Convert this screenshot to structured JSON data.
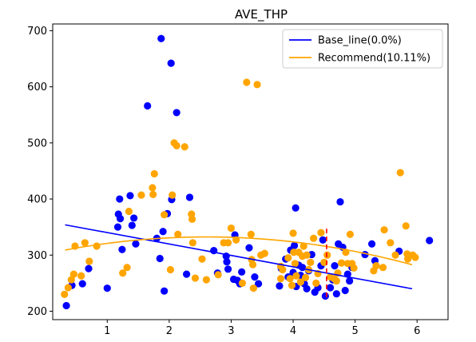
{
  "chart_data": {
    "type": "scatter",
    "title": "AVE_THP",
    "xlabel": "",
    "ylabel": "",
    "xlim": [
      0.12,
      6.5
    ],
    "ylim": [
      185,
      712
    ],
    "xticks": [
      1,
      2,
      3,
      4,
      5,
      6
    ],
    "yticks": [
      200,
      300,
      400,
      500,
      600,
      700
    ],
    "grid": false,
    "legend_position": "top-right",
    "legend": [
      {
        "label": "Base_line(0.0%)",
        "color": "#0000ff",
        "kind": "line"
      },
      {
        "label": "Recommend(10.11%)",
        "color": "#ffa500",
        "kind": "line"
      }
    ],
    "series": [
      {
        "name": "Base_line(0.0%)",
        "color": "#0000ff",
        "points": [
          [
            0.34,
            210
          ],
          [
            0.43,
            246
          ],
          [
            0.6,
            249
          ],
          [
            0.7,
            276
          ],
          [
            1.0,
            241
          ],
          [
            1.17,
            350
          ],
          [
            1.18,
            373
          ],
          [
            1.2,
            400
          ],
          [
            1.21,
            365
          ],
          [
            1.24,
            310
          ],
          [
            1.37,
            406
          ],
          [
            1.4,
            353
          ],
          [
            1.43,
            366
          ],
          [
            1.46,
            320
          ],
          [
            1.65,
            566
          ],
          [
            1.8,
            330
          ],
          [
            1.85,
            294
          ],
          [
            1.87,
            686
          ],
          [
            1.9,
            342
          ],
          [
            1.92,
            236
          ],
          [
            1.97,
            374
          ],
          [
            2.03,
            642
          ],
          [
            2.04,
            399
          ],
          [
            2.12,
            554
          ],
          [
            2.28,
            266
          ],
          [
            2.33,
            403
          ],
          [
            2.72,
            308
          ],
          [
            2.78,
            268
          ],
          [
            2.92,
            298
          ],
          [
            2.93,
            288
          ],
          [
            2.95,
            275
          ],
          [
            3.04,
            257
          ],
          [
            3.06,
            336
          ],
          [
            3.1,
            255
          ],
          [
            3.14,
            249
          ],
          [
            3.17,
            270
          ],
          [
            3.29,
            313
          ],
          [
            3.38,
            261
          ],
          [
            3.44,
            249
          ],
          [
            3.78,
            245
          ],
          [
            3.81,
            276
          ],
          [
            3.88,
            293
          ],
          [
            3.92,
            261
          ],
          [
            3.96,
            309
          ],
          [
            4.0,
            269
          ],
          [
            4.02,
            317
          ],
          [
            4.04,
            384
          ],
          [
            4.05,
            244
          ],
          [
            4.09,
            282
          ],
          [
            4.12,
            264
          ],
          [
            4.15,
            278
          ],
          [
            4.18,
            249
          ],
          [
            4.22,
            240
          ],
          [
            4.25,
            272
          ],
          [
            4.3,
            301
          ],
          [
            4.35,
            234
          ],
          [
            4.4,
            242
          ],
          [
            4.45,
            281
          ],
          [
            4.48,
            327
          ],
          [
            4.52,
            227
          ],
          [
            4.6,
            242
          ],
          [
            4.64,
            256
          ],
          [
            4.67,
            281
          ],
          [
            4.7,
            231
          ],
          [
            4.73,
            320
          ],
          [
            4.76,
            395
          ],
          [
            4.8,
            314
          ],
          [
            4.84,
            237
          ],
          [
            4.88,
            266
          ],
          [
            4.91,
            254
          ],
          [
            4.95,
            278
          ],
          [
            5.16,
            301
          ],
          [
            5.27,
            320
          ],
          [
            5.32,
            290
          ],
          [
            5.71,
            307
          ],
          [
            6.2,
            326
          ]
        ]
      },
      {
        "name": "Recommend(10.11%)",
        "color": "#ffa500",
        "points": [
          [
            0.31,
            230
          ],
          [
            0.37,
            242
          ],
          [
            0.42,
            256
          ],
          [
            0.46,
            266
          ],
          [
            0.48,
            316
          ],
          [
            0.58,
            263
          ],
          [
            0.64,
            322
          ],
          [
            0.71,
            289
          ],
          [
            0.83,
            316
          ],
          [
            1.25,
            268
          ],
          [
            1.32,
            278
          ],
          [
            1.35,
            378
          ],
          [
            1.55,
            407
          ],
          [
            1.73,
            420
          ],
          [
            1.74,
            408
          ],
          [
            1.76,
            445
          ],
          [
            1.92,
            372
          ],
          [
            2.05,
            407
          ],
          [
            2.08,
            500
          ],
          [
            2.12,
            495
          ],
          [
            2.14,
            337
          ],
          [
            2.25,
            493
          ],
          [
            2.02,
            274
          ],
          [
            2.37,
            364
          ],
          [
            2.36,
            373
          ],
          [
            2.38,
            322
          ],
          [
            2.42,
            259
          ],
          [
            2.53,
            293
          ],
          [
            2.6,
            256
          ],
          [
            2.79,
            265
          ],
          [
            2.88,
            322
          ],
          [
            2.95,
            322
          ],
          [
            3.0,
            348
          ],
          [
            3.08,
            327
          ],
          [
            3.18,
            250
          ],
          [
            3.25,
            608
          ],
          [
            3.32,
            337
          ],
          [
            3.33,
            292
          ],
          [
            3.35,
            283
          ],
          [
            3.36,
            241
          ],
          [
            3.42,
            604
          ],
          [
            3.48,
            300
          ],
          [
            3.54,
            303
          ],
          [
            3.8,
            280
          ],
          [
            3.8,
            258
          ],
          [
            3.83,
            274
          ],
          [
            3.92,
            295
          ],
          [
            3.95,
            258
          ],
          [
            3.98,
            246
          ],
          [
            4.0,
            339
          ],
          [
            4.01,
            305
          ],
          [
            4.03,
            285
          ],
          [
            4.05,
            263
          ],
          [
            4.09,
            305
          ],
          [
            4.12,
            252
          ],
          [
            4.15,
            298
          ],
          [
            4.17,
            316
          ],
          [
            4.2,
            260
          ],
          [
            4.22,
            300
          ],
          [
            4.25,
            274
          ],
          [
            4.28,
            287
          ],
          [
            4.33,
            330
          ],
          [
            4.37,
            250
          ],
          [
            4.4,
            267
          ],
          [
            4.45,
            340
          ],
          [
            4.5,
            287
          ],
          [
            4.55,
            300
          ],
          [
            4.6,
            261
          ],
          [
            4.66,
            258
          ],
          [
            4.7,
            254
          ],
          [
            4.72,
            268
          ],
          [
            4.78,
            286
          ],
          [
            4.85,
            305
          ],
          [
            4.88,
            285
          ],
          [
            4.92,
            337
          ],
          [
            4.95,
            285
          ],
          [
            4.98,
            277
          ],
          [
            5.3,
            272
          ],
          [
            5.34,
            281
          ],
          [
            5.45,
            278
          ],
          [
            5.47,
            345
          ],
          [
            5.57,
            322
          ],
          [
            5.65,
            300
          ],
          [
            5.73,
            447
          ],
          [
            5.82,
            352
          ],
          [
            5.84,
            302
          ],
          [
            5.85,
            293
          ],
          [
            5.93,
            300
          ],
          [
            5.97,
            296
          ]
        ]
      }
    ],
    "lines": [
      {
        "name": "Base_line(0.0%)",
        "color": "#0000ff",
        "type": "linear",
        "x_range": [
          0.32,
          5.92
        ],
        "y_start": 354,
        "y_end": 240
      },
      {
        "name": "Recommend(10.11%)",
        "color": "#ffa500",
        "type": "quadratic",
        "x_range": [
          0.32,
          5.92
        ],
        "coef": [
          302.0,
          23.4,
          -4.5
        ]
      }
    ],
    "annotations": [
      {
        "type": "vline",
        "color": "#ff0000",
        "style": "dashed",
        "x": 4.54,
        "y_range": [
          225,
          347
        ]
      }
    ]
  }
}
